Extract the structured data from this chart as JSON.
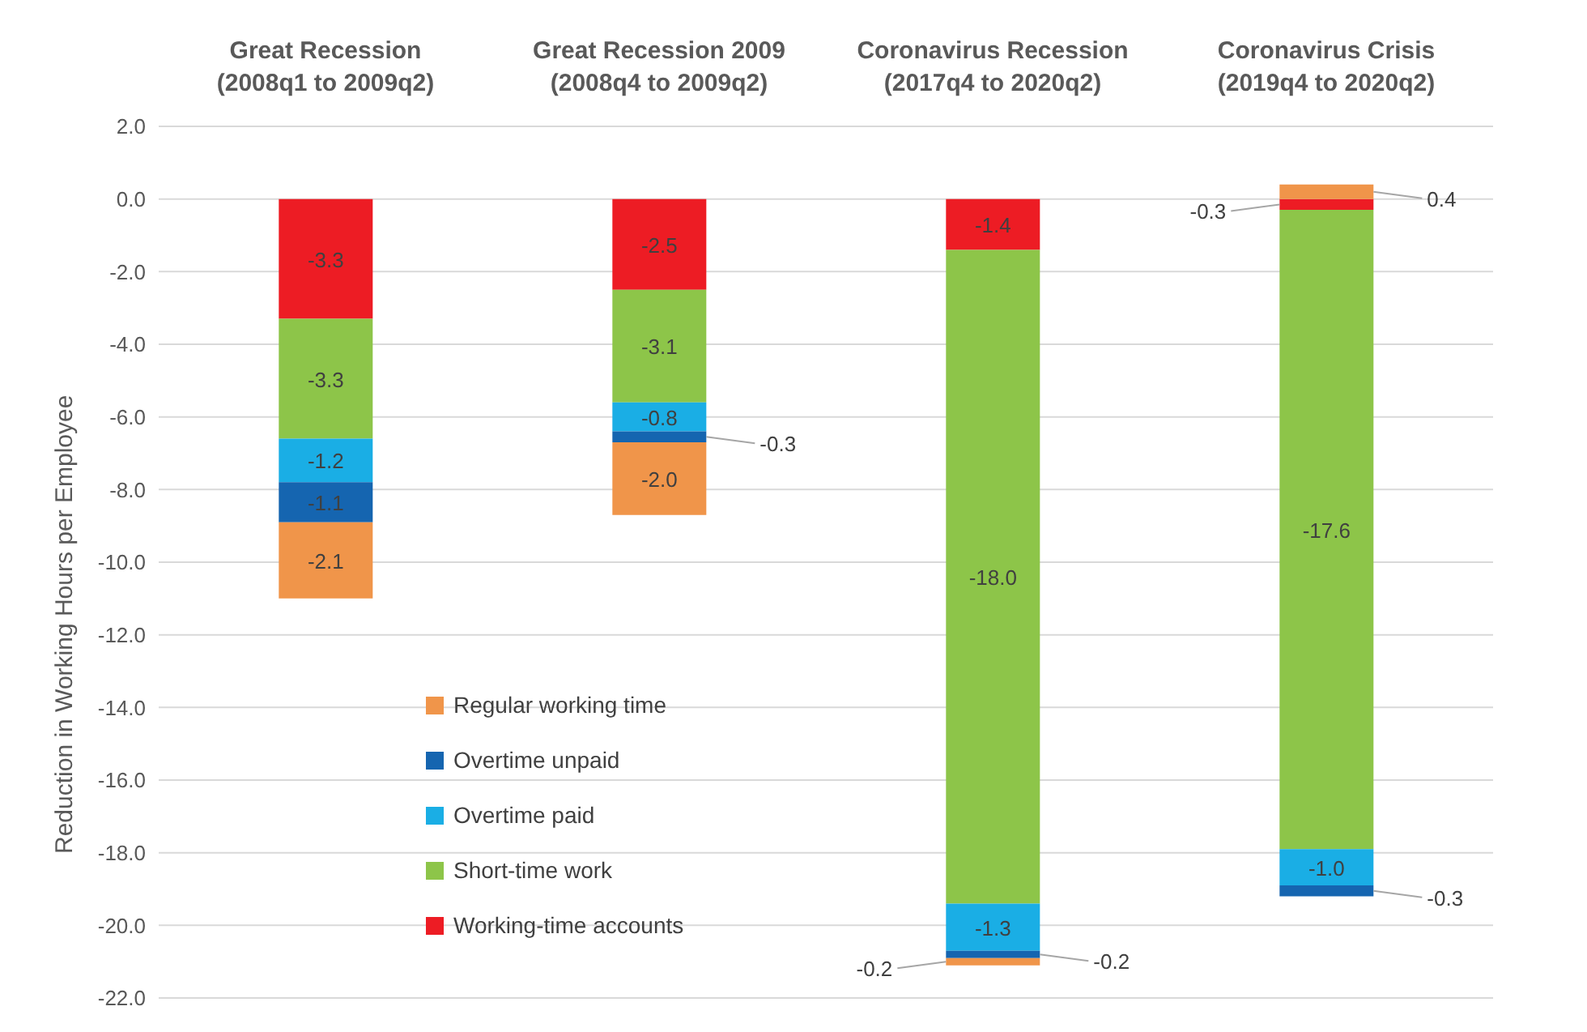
{
  "chart_data": {
    "type": "bar",
    "stacked": true,
    "categories": [
      "Great Recession (2008q1 to 2009q2)",
      "Great Recession 2009 (2008q4 to 2009q2)",
      "Coronavirus Recession (2017q4 to 2020q2)",
      "Coronavirus Crisis (2019q4 to 2020q2)"
    ],
    "series": [
      {
        "name": "Working-time accounts",
        "color": "#ed1c24",
        "values": [
          -3.3,
          -2.5,
          -1.4,
          -0.3
        ],
        "value_labels": [
          "-3.3",
          "-2.5",
          "-1.4",
          "-0.3"
        ]
      },
      {
        "name": "Short-time work",
        "color": "#8dc549",
        "values": [
          -3.3,
          -3.1,
          -18.0,
          -17.6
        ],
        "value_labels": [
          "-3.3",
          "-3.1",
          "-18.0",
          "-17.6"
        ]
      },
      {
        "name": "Overtime paid",
        "color": "#1aaee5",
        "values": [
          -1.2,
          -0.8,
          -1.3,
          -1.0
        ],
        "value_labels": [
          "-1.2",
          "-0.8",
          "-1.3",
          "-1.0"
        ]
      },
      {
        "name": "Overtime unpaid",
        "color": "#1565b0",
        "values": [
          -1.1,
          -0.3,
          -0.2,
          -0.3
        ],
        "value_labels": [
          "-1.1",
          "-0.3",
          "-0.2",
          "-0.3"
        ]
      },
      {
        "name": "Regular working time",
        "color": "#f0954a",
        "values": [
          -2.1,
          -2.0,
          -0.2,
          0.4
        ],
        "value_labels": [
          "-2.1",
          "-2.0",
          "-0.2",
          "0.4"
        ]
      }
    ],
    "ylabel": "Reduction in Working Hours per Employee",
    "ylim": [
      -22,
      2
    ],
    "yticks": [
      {
        "value": -22,
        "label": "-22.0"
      },
      {
        "value": -20,
        "label": "-20.0"
      },
      {
        "value": -18,
        "label": "-18.0"
      },
      {
        "value": -16,
        "label": "-16.0"
      },
      {
        "value": -14,
        "label": "-14.0"
      },
      {
        "value": -12,
        "label": "-12.0"
      },
      {
        "value": -10,
        "label": "-10.0"
      },
      {
        "value": -8,
        "label": "-8.0"
      },
      {
        "value": -6,
        "label": "-6.0"
      },
      {
        "value": -4,
        "label": "-4.0"
      },
      {
        "value": -2,
        "label": "-2.0"
      },
      {
        "value": 0,
        "label": "0.0"
      },
      {
        "value": 2,
        "label": "2.0"
      }
    ],
    "grid": "y",
    "legend": "bottom left"
  }
}
